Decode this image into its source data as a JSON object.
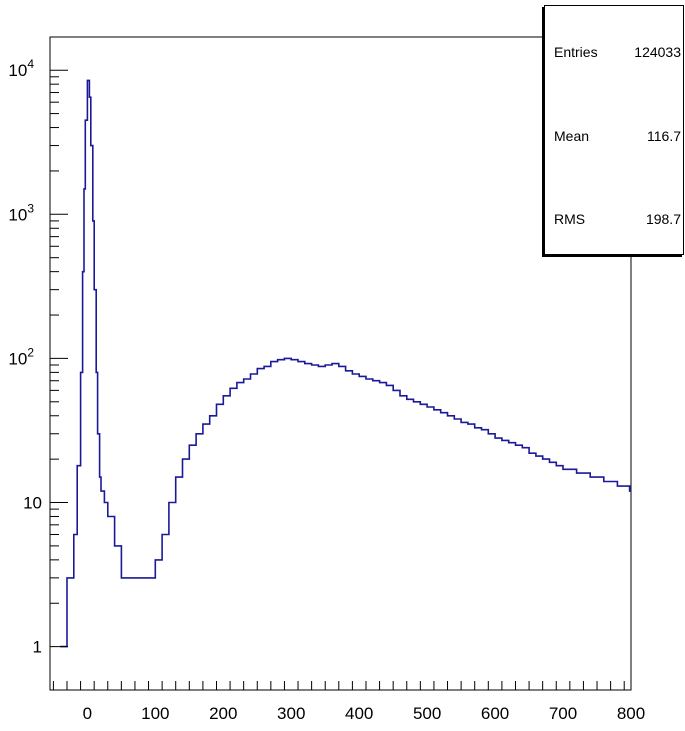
{
  "chart_data": {
    "type": "histogram",
    "title": "",
    "xlabel": "",
    "ylabel": "",
    "xlim": [
      -55,
      800
    ],
    "ylim": [
      0.5,
      17000
    ],
    "log_y": true,
    "grid": false,
    "line_color": "#1a1a99",
    "x_ticks": [
      {
        "value": 0,
        "label": "0"
      },
      {
        "value": 100,
        "label": "100"
      },
      {
        "value": 200,
        "label": "200"
      },
      {
        "value": 300,
        "label": "300"
      },
      {
        "value": 400,
        "label": "400"
      },
      {
        "value": 500,
        "label": "500"
      },
      {
        "value": 600,
        "label": "600"
      },
      {
        "value": 700,
        "label": "700"
      },
      {
        "value": 800,
        "label": "800"
      }
    ],
    "y_ticks": [
      {
        "value": 1,
        "base": "1",
        "exp": ""
      },
      {
        "value": 10,
        "base": "10",
        "exp": ""
      },
      {
        "value": 100,
        "base": "10",
        "exp": "2"
      },
      {
        "value": 1000,
        "base": "10",
        "exp": "3"
      },
      {
        "value": 10000,
        "base": "10",
        "exp": "4"
      }
    ],
    "series": [
      {
        "x": [
          -40,
          -30,
          -20,
          -15,
          -10,
          -7,
          -5,
          -3,
          0,
          3,
          5,
          8,
          10,
          13,
          15,
          18,
          20,
          25,
          30,
          40,
          50,
          60,
          70,
          80,
          90,
          100,
          110,
          120,
          130,
          140,
          150,
          160,
          170,
          180,
          190,
          200,
          210,
          220,
          230,
          240,
          250,
          260,
          270,
          280,
          290,
          300,
          310,
          320,
          330,
          340,
          350,
          360,
          370,
          380,
          390,
          400,
          410,
          420,
          430,
          440,
          450,
          460,
          470,
          480,
          490,
          500,
          510,
          520,
          530,
          540,
          550,
          560,
          570,
          580,
          590,
          600,
          610,
          620,
          630,
          640,
          650,
          660,
          670,
          680,
          690,
          700,
          710,
          720,
          730,
          740,
          750,
          760,
          770,
          780,
          790,
          798
        ],
        "values": [
          1,
          3,
          6,
          18,
          80,
          400,
          1500,
          4500,
          8500,
          6500,
          3000,
          900,
          300,
          80,
          30,
          15,
          12,
          10,
          8,
          5,
          3,
          3,
          3,
          3,
          3,
          4,
          6,
          10,
          15,
          20,
          25,
          30,
          35,
          40,
          48,
          55,
          62,
          68,
          72,
          78,
          85,
          88,
          95,
          98,
          100,
          98,
          95,
          92,
          90,
          88,
          90,
          92,
          88,
          82,
          78,
          75,
          72,
          70,
          68,
          65,
          60,
          55,
          52,
          50,
          48,
          46,
          44,
          42,
          40,
          38,
          36,
          35,
          33,
          32,
          30,
          28,
          27,
          26,
          25,
          24,
          22,
          21,
          20,
          19,
          18,
          17,
          17,
          16,
          16,
          15,
          15,
          14,
          14,
          13,
          13,
          12
        ]
      }
    ],
    "stats": [
      {
        "name": "Entries",
        "value": "124033"
      },
      {
        "name": "Mean",
        "value": "116.7"
      },
      {
        "name": "RMS",
        "value": "198.7"
      }
    ]
  }
}
